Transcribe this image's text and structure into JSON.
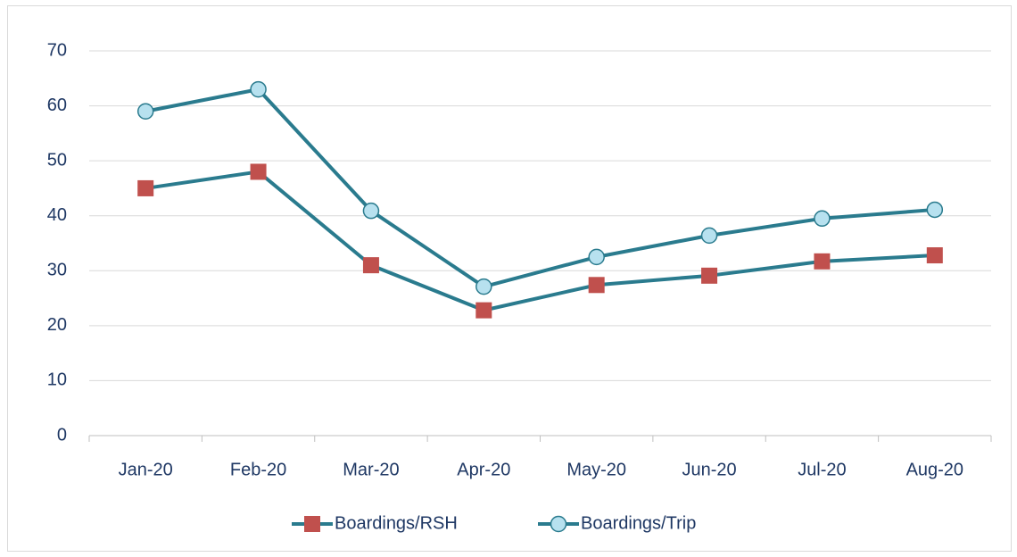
{
  "chart_data": {
    "type": "line",
    "categories": [
      "Jan-20",
      "Feb-20",
      "Mar-20",
      "Apr-20",
      "May-20",
      "Jun-20",
      "Jul-20",
      "Aug-20"
    ],
    "series": [
      {
        "name": "Boardings/RSH",
        "color": "#c0504d",
        "line_color": "#2a7b8e",
        "marker": "square",
        "values": [
          45,
          48,
          31,
          22.8,
          27.4,
          29.1,
          31.7,
          32.8
        ]
      },
      {
        "name": "Boardings/Trip",
        "color": "#b7e1ef",
        "line_color": "#2a7b8e",
        "marker": "circle",
        "values": [
          59,
          63,
          40.9,
          27.1,
          32.5,
          36.4,
          39.5,
          41.1
        ]
      }
    ],
    "ylim": [
      0,
      70
    ],
    "yticks": [
      0,
      10,
      20,
      30,
      40,
      50,
      60,
      70
    ],
    "grid": true,
    "legend": "bottom"
  }
}
